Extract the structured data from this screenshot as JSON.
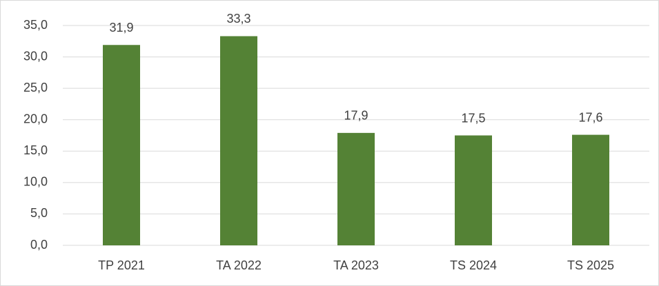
{
  "chart_data": {
    "type": "bar",
    "categories": [
      "TP 2021",
      "TA 2022",
      "TA 2023",
      "TS 2024",
      "TS 2025"
    ],
    "values": [
      31.9,
      33.3,
      17.9,
      17.5,
      17.6
    ],
    "value_labels": [
      "31,9",
      "33,3",
      "17,9",
      "17,5",
      "17,6"
    ],
    "color": "#548235",
    "ylim": [
      0,
      35
    ],
    "yticks": [
      {
        "value": 0,
        "label": "0,0"
      },
      {
        "value": 5,
        "label": "5,0"
      },
      {
        "value": 10,
        "label": "10,0"
      },
      {
        "value": 15,
        "label": "15,0"
      },
      {
        "value": 20,
        "label": "20,0"
      },
      {
        "value": 25,
        "label": "25,0"
      },
      {
        "value": 30,
        "label": "30,0"
      },
      {
        "value": 35,
        "label": "35,0"
      }
    ],
    "grid": true
  }
}
